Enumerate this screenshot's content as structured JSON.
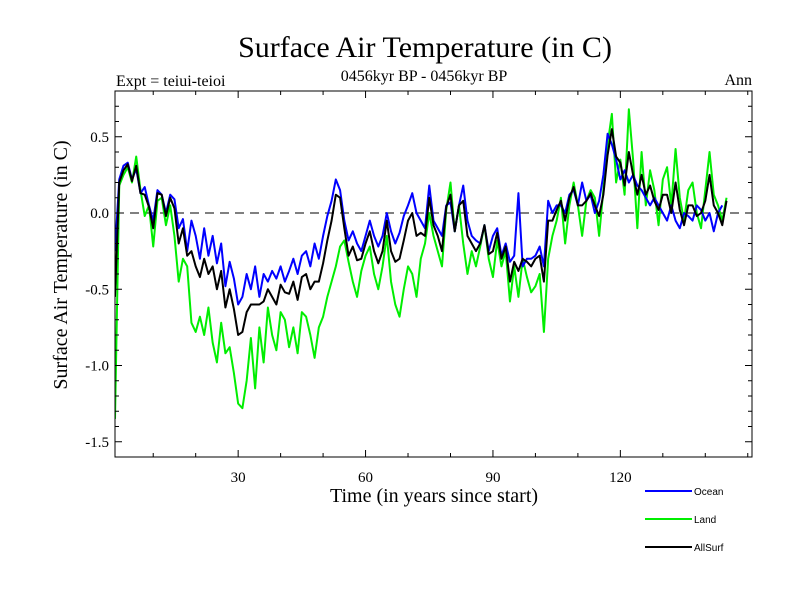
{
  "chart_data": {
    "type": "line",
    "title": "Surface Air Temperature (in C)",
    "subtitle_left": "Expt = teiui-teioi",
    "subtitle_center": "0456kyr BP - 0456kyr BP",
    "subtitle_right": "Ann",
    "xlabel": "Time (in years since start)",
    "ylabel": "Surface Air Temperature (in C)",
    "xlim": [
      1,
      151
    ],
    "ylim": [
      -1.6,
      0.8
    ],
    "xticks": [
      30,
      60,
      90,
      120
    ],
    "xtick_labels": [
      "30",
      "60",
      "90",
      "120"
    ],
    "yticks": [
      -1.5,
      -1.0,
      -0.5,
      0.0,
      0.5
    ],
    "ytick_labels": [
      "-1.5",
      "-1.0",
      "-0.5",
      "0.0",
      "0.5"
    ],
    "zero_line": "dashed",
    "legend_position": "bottom-right",
    "series": [
      {
        "name": "Ocean",
        "color": "#0000ff",
        "values": [
          -0.25,
          0.22,
          0.31,
          0.33,
          0.22,
          0.29,
          0.13,
          0.17,
          0.05,
          -0.05,
          0.15,
          0.12,
          0.0,
          0.12,
          0.09,
          -0.1,
          -0.04,
          -0.25,
          -0.05,
          -0.15,
          -0.3,
          -0.1,
          -0.28,
          -0.15,
          -0.33,
          -0.2,
          -0.48,
          -0.32,
          -0.43,
          -0.6,
          -0.55,
          -0.4,
          -0.5,
          -0.35,
          -0.55,
          -0.4,
          -0.45,
          -0.38,
          -0.43,
          -0.35,
          -0.45,
          -0.38,
          -0.3,
          -0.4,
          -0.28,
          -0.25,
          -0.35,
          -0.2,
          -0.3,
          -0.15,
          -0.02,
          0.08,
          0.22,
          0.15,
          -0.05,
          -0.18,
          -0.12,
          -0.2,
          -0.25,
          -0.15,
          -0.05,
          -0.15,
          -0.22,
          -0.15,
          0.0,
          -0.12,
          -0.2,
          -0.13,
          -0.02,
          0.05,
          0.13,
          0.0,
          -0.05,
          -0.1,
          0.18,
          -0.05,
          -0.1,
          -0.15,
          0.05,
          0.07,
          -0.12,
          0.05,
          0.18,
          -0.05,
          -0.15,
          -0.18,
          -0.2,
          -0.08,
          -0.25,
          -0.15,
          -0.1,
          -0.28,
          -0.2,
          -0.32,
          -0.28,
          0.13,
          -0.35,
          -0.3,
          -0.3,
          -0.28,
          -0.22,
          -0.35,
          0.08,
          0.0,
          0.05,
          0.05,
          0.0,
          0.12,
          0.15,
          0.05,
          0.2,
          0.08,
          0.12,
          0.0,
          0.08,
          0.25,
          0.52,
          0.45,
          0.35,
          0.22,
          0.28,
          0.2,
          0.25,
          0.18,
          0.15,
          0.1,
          0.05,
          0.1,
          0.05,
          0.0,
          -0.05,
          0.05,
          -0.05,
          -0.1,
          0.0,
          -0.02,
          -0.05,
          0.05,
          0.02,
          -0.05,
          0.0,
          -0.12,
          0.0,
          0.05
        ]
      },
      {
        "name": "Land",
        "color": "#00ee00",
        "values": [
          -1.35,
          0.18,
          0.25,
          0.3,
          0.2,
          0.37,
          0.15,
          -0.02,
          0.05,
          -0.22,
          0.08,
          0.1,
          -0.08,
          0.05,
          -0.15,
          -0.45,
          -0.3,
          -0.35,
          -0.72,
          -0.78,
          -0.68,
          -0.8,
          -0.62,
          -0.85,
          -0.98,
          -0.72,
          -0.92,
          -0.88,
          -1.05,
          -1.25,
          -1.28,
          -1.1,
          -0.82,
          -1.15,
          -0.75,
          -0.98,
          -0.62,
          -0.8,
          -0.9,
          -0.65,
          -0.7,
          -0.88,
          -0.75,
          -0.92,
          -0.65,
          -0.68,
          -0.8,
          -0.95,
          -0.75,
          -0.68,
          -0.55,
          -0.45,
          -0.35,
          -0.22,
          -0.18,
          -0.32,
          -0.45,
          -0.55,
          -0.38,
          -0.28,
          -0.22,
          -0.4,
          -0.5,
          -0.35,
          -0.15,
          -0.45,
          -0.6,
          -0.68,
          -0.5,
          -0.35,
          -0.4,
          -0.55,
          -0.3,
          -0.2,
          0.0,
          -0.15,
          -0.25,
          -0.35,
          0.02,
          0.2,
          -0.12,
          0.05,
          -0.2,
          -0.4,
          -0.25,
          -0.35,
          -0.22,
          -0.08,
          -0.3,
          -0.42,
          -0.18,
          -0.35,
          -0.25,
          -0.58,
          -0.35,
          -0.55,
          -0.3,
          -0.42,
          -0.52,
          -0.48,
          -0.4,
          -0.78,
          -0.3,
          -0.15,
          -0.05,
          0.1,
          -0.2,
          0.05,
          0.2,
          0.05,
          -0.15,
          0.08,
          0.15,
          0.1,
          -0.15,
          0.15,
          0.45,
          0.65,
          0.2,
          0.35,
          0.12,
          0.68,
          0.35,
          -0.1,
          0.4,
          0.05,
          0.28,
          0.15,
          -0.08,
          0.22,
          0.3,
          0.05,
          0.42,
          0.1,
          -0.05,
          0.15,
          0.2,
          0.0,
          -0.1,
          0.15,
          0.4,
          0.12,
          0.05,
          -0.05,
          0.1
        ]
      },
      {
        "name": "AllSurf",
        "color": "#000000",
        "values": [
          -0.55,
          0.2,
          0.28,
          0.32,
          0.21,
          0.31,
          0.13,
          0.12,
          0.04,
          -0.1,
          0.13,
          0.12,
          -0.02,
          0.1,
          0.03,
          -0.2,
          -0.1,
          -0.28,
          -0.25,
          -0.35,
          -0.42,
          -0.3,
          -0.4,
          -0.35,
          -0.5,
          -0.38,
          -0.62,
          -0.5,
          -0.63,
          -0.8,
          -0.78,
          -0.65,
          -0.6,
          -0.6,
          -0.6,
          -0.58,
          -0.5,
          -0.55,
          -0.6,
          -0.47,
          -0.52,
          -0.53,
          -0.45,
          -0.57,
          -0.42,
          -0.4,
          -0.5,
          -0.45,
          -0.45,
          -0.33,
          -0.18,
          -0.05,
          0.12,
          0.1,
          -0.1,
          -0.28,
          -0.22,
          -0.31,
          -0.3,
          -0.2,
          -0.12,
          -0.25,
          -0.33,
          -0.25,
          -0.05,
          -0.25,
          -0.32,
          -0.3,
          -0.18,
          -0.05,
          0.0,
          -0.15,
          -0.13,
          -0.15,
          0.1,
          -0.08,
          -0.15,
          -0.25,
          0.04,
          0.12,
          -0.12,
          0.05,
          0.08,
          -0.15,
          -0.2,
          -0.25,
          -0.2,
          -0.08,
          -0.27,
          -0.25,
          -0.13,
          -0.3,
          -0.22,
          -0.45,
          -0.32,
          -0.38,
          -0.3,
          -0.32,
          -0.35,
          -0.3,
          -0.28,
          -0.45,
          -0.05,
          -0.05,
          0.02,
          0.08,
          -0.05,
          0.1,
          0.17,
          0.05,
          0.05,
          0.08,
          0.13,
          0.05,
          -0.02,
          0.12,
          0.38,
          0.55,
          0.37,
          0.33,
          0.18,
          0.4,
          0.25,
          0.12,
          0.25,
          0.12,
          0.18,
          0.08,
          0.02,
          0.12,
          0.12,
          0.0,
          0.2,
          0.02,
          -0.08,
          0.05,
          0.05,
          -0.02,
          0.0,
          0.08,
          0.25,
          0.05,
          0.0,
          -0.08,
          0.08
        ]
      }
    ]
  }
}
